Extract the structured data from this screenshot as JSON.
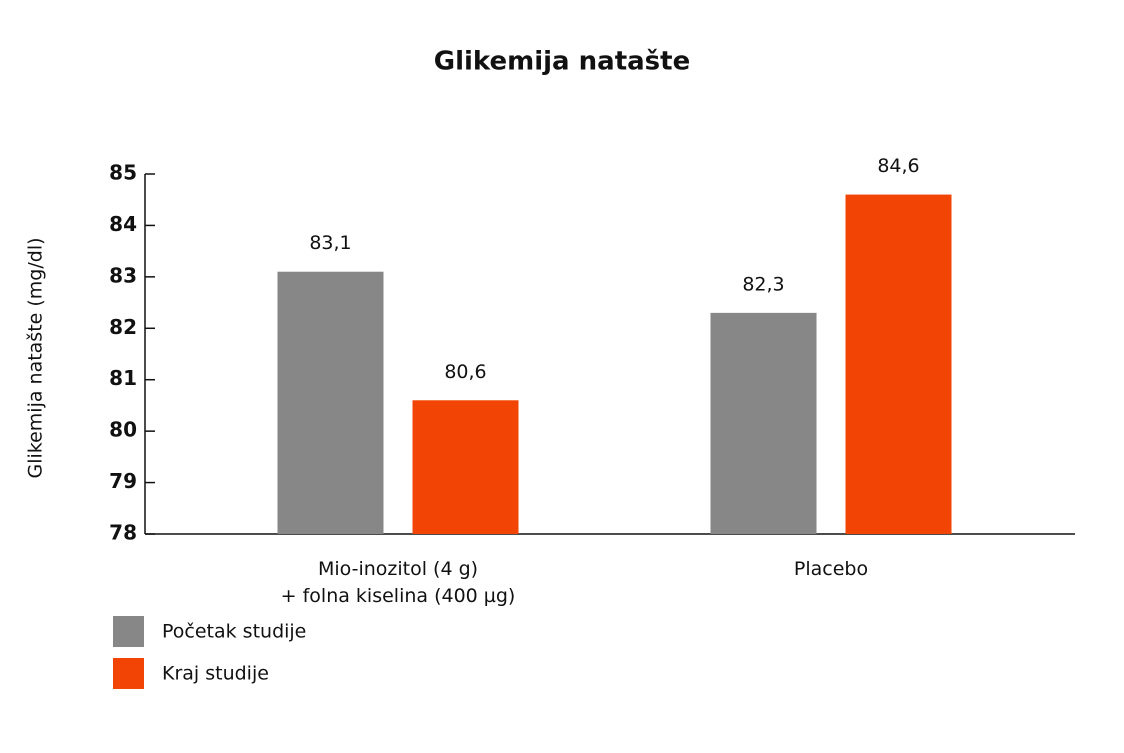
{
  "chart_data": {
    "type": "bar",
    "title": "Glikemija natašte",
    "y_label": "Glikemija natašte (mg/dl)",
    "categories": [
      "Mio-inozitol (4 g)\n+ folna kiselina (400 µg)",
      "Placebo"
    ],
    "series": [
      {
        "name": "Početak studije",
        "color": "#878787",
        "values": [
          83.1,
          82.3
        ],
        "value_labels": [
          "83,1",
          "82,3"
        ]
      },
      {
        "name": "Kraj studije",
        "color": "#f24405",
        "values": [
          80.6,
          84.6
        ],
        "value_labels": [
          "80,6",
          "84,6"
        ]
      }
    ],
    "ylim": [
      78,
      85
    ],
    "yticks": [
      78,
      79,
      80,
      81,
      82,
      83,
      84,
      85
    ]
  }
}
